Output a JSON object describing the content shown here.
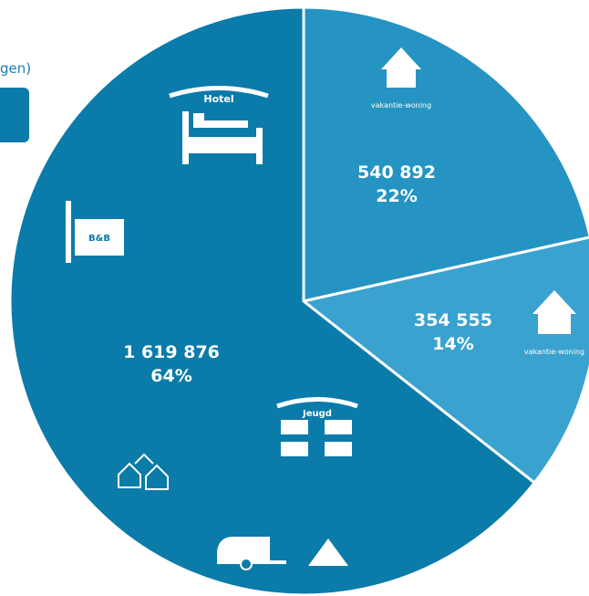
{
  "chart_data": {
    "type": "pie",
    "legend_fragment": "gen)",
    "categories": [
      "vakantie-woning",
      "vakantie-woning",
      "Hotel"
    ],
    "values": [
      540892,
      354555,
      1619876
    ],
    "value_labels": [
      "540 892",
      "354 555",
      "1 619 876"
    ],
    "percentages": [
      22,
      14,
      64
    ],
    "percentage_labels": [
      "22%",
      "14%",
      "64%"
    ],
    "colors": [
      "#2594c2",
      "#3aa2cf",
      "#0b7ba9"
    ],
    "icon_labels": [
      "Jeugd",
      "B&B"
    ]
  }
}
